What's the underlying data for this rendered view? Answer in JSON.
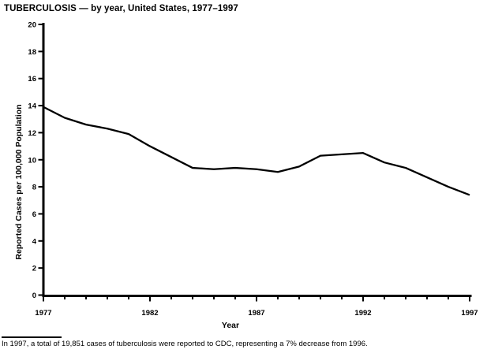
{
  "chart_data": {
    "type": "line",
    "title": "TUBERCULOSIS — by year, United States, 1977–1997",
    "xlabel": "Year",
    "ylabel": "Reported Cases per 100,000 Population",
    "footnote": "In 1997, a total of 19,851 cases of tuberculosis were reported to CDC, representing a 7% decrease from 1996.",
    "x": [
      1977,
      1978,
      1979,
      1980,
      1981,
      1982,
      1983,
      1984,
      1985,
      1986,
      1987,
      1988,
      1989,
      1990,
      1991,
      1992,
      1993,
      1994,
      1995,
      1996,
      1997
    ],
    "values": [
      13.9,
      13.1,
      12.6,
      12.3,
      11.9,
      11.0,
      10.2,
      9.4,
      9.3,
      9.4,
      9.3,
      9.1,
      9.5,
      10.3,
      10.4,
      10.5,
      9.8,
      9.4,
      8.7,
      8.0,
      7.4
    ],
    "xlim": [
      1977,
      1997
    ],
    "ylim": [
      0,
      20
    ],
    "y_tick_interval": 2,
    "y_tick_labels": [
      "0",
      "2",
      "4",
      "6",
      "8",
      "10",
      "12",
      "14",
      "16",
      "18",
      "20"
    ],
    "x_major_ticks": [
      1977,
      1982,
      1987,
      1992,
      1997
    ],
    "x_major_tick_labels": [
      "1977",
      "1982",
      "1987",
      "1992",
      "1997"
    ],
    "x_minor_tick_interval": 1,
    "grid": false,
    "legend": false,
    "colors": {
      "line": "#000000",
      "axis": "#000000",
      "text": "#000000",
      "background": "#ffffff"
    }
  }
}
